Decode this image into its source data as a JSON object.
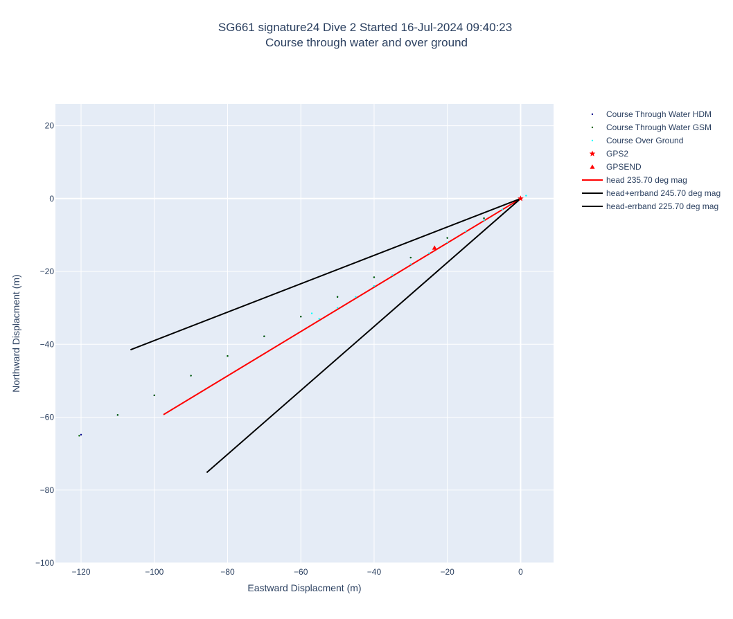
{
  "chart_data": {
    "type": "scatter",
    "title": "SG661 signature24 Dive 2 Started 16-Jul-2024 09:40:23",
    "subtitle": "Course through water and over ground",
    "xlabel": "Eastward Displacment (m)",
    "ylabel": "Northward Displacment (m)",
    "xlim": [
      -127,
      9
    ],
    "ylim": [
      -100,
      26
    ],
    "x_ticks": [
      -120,
      -100,
      -80,
      -60,
      -40,
      -20,
      0
    ],
    "x_tick_labels": [
      "−120",
      "−100",
      "−80",
      "−60",
      "−40",
      "−20",
      "0"
    ],
    "y_ticks": [
      20,
      0,
      -20,
      -40,
      -60,
      -80,
      -100
    ],
    "y_tick_labels": [
      "20",
      "0",
      "−20",
      "−40",
      "−60",
      "−80",
      "−100"
    ],
    "grid": true,
    "legend_position": "right",
    "series": [
      {
        "name": "Course Through Water HDM",
        "mode": "markers",
        "marker": "dot",
        "color": "#00008b",
        "x": [
          0,
          -10,
          -20,
          -30,
          -40,
          -50,
          -60,
          -70,
          -80,
          -90,
          -100,
          -110,
          -120
        ],
        "y": [
          0,
          -5.4,
          -10.8,
          -16.2,
          -21.6,
          -27,
          -32.4,
          -37.8,
          -43.2,
          -48.6,
          -54,
          -59.4,
          -64.8
        ]
      },
      {
        "name": "Course Through Water GSM",
        "mode": "markers",
        "marker": "dot",
        "color": "#006400",
        "x": [
          0,
          -10,
          -20,
          -30,
          -40,
          -50,
          -60,
          -70,
          -80,
          -90,
          -100,
          -110,
          -120.5
        ],
        "y": [
          0,
          -5.4,
          -10.8,
          -16.2,
          -21.6,
          -27,
          -32.4,
          -37.8,
          -43.2,
          -48.6,
          -54,
          -59.4,
          -65.1
        ]
      },
      {
        "name": "Course Over Ground",
        "mode": "markers",
        "marker": "dot",
        "color": "#00ffff",
        "x": [
          1.5,
          0,
          -5,
          -10,
          -15,
          -20,
          -25,
          -30,
          -35,
          -40,
          -45,
          -50,
          -55,
          -57
        ],
        "y": [
          0.8,
          0,
          -3,
          -6,
          -9,
          -12,
          -15,
          -18,
          -21,
          -24,
          -27,
          -30,
          -33,
          -31.5
        ]
      },
      {
        "name": "GPS2",
        "mode": "markers",
        "marker": "star",
        "color": "#ff0000",
        "x": [
          0
        ],
        "y": [
          0
        ]
      },
      {
        "name": "GPSEND",
        "mode": "markers",
        "marker": "triangle-up",
        "color": "#ff0000",
        "x": [
          -23.5
        ],
        "y": [
          -13.5
        ]
      },
      {
        "name": "head 235.70 deg mag",
        "mode": "lines",
        "color": "#ff0000",
        "x": [
          0,
          -97.5
        ],
        "y": [
          0,
          -59.3
        ]
      },
      {
        "name": "head+errband 245.70 deg mag",
        "mode": "lines",
        "color": "#000000",
        "x": [
          0,
          -106.5
        ],
        "y": [
          0,
          -41.5
        ]
      },
      {
        "name": "head-errband 225.70 deg mag",
        "mode": "lines",
        "color": "#000000",
        "x": [
          0,
          -85.7
        ],
        "y": [
          0,
          -75.2
        ]
      }
    ]
  }
}
